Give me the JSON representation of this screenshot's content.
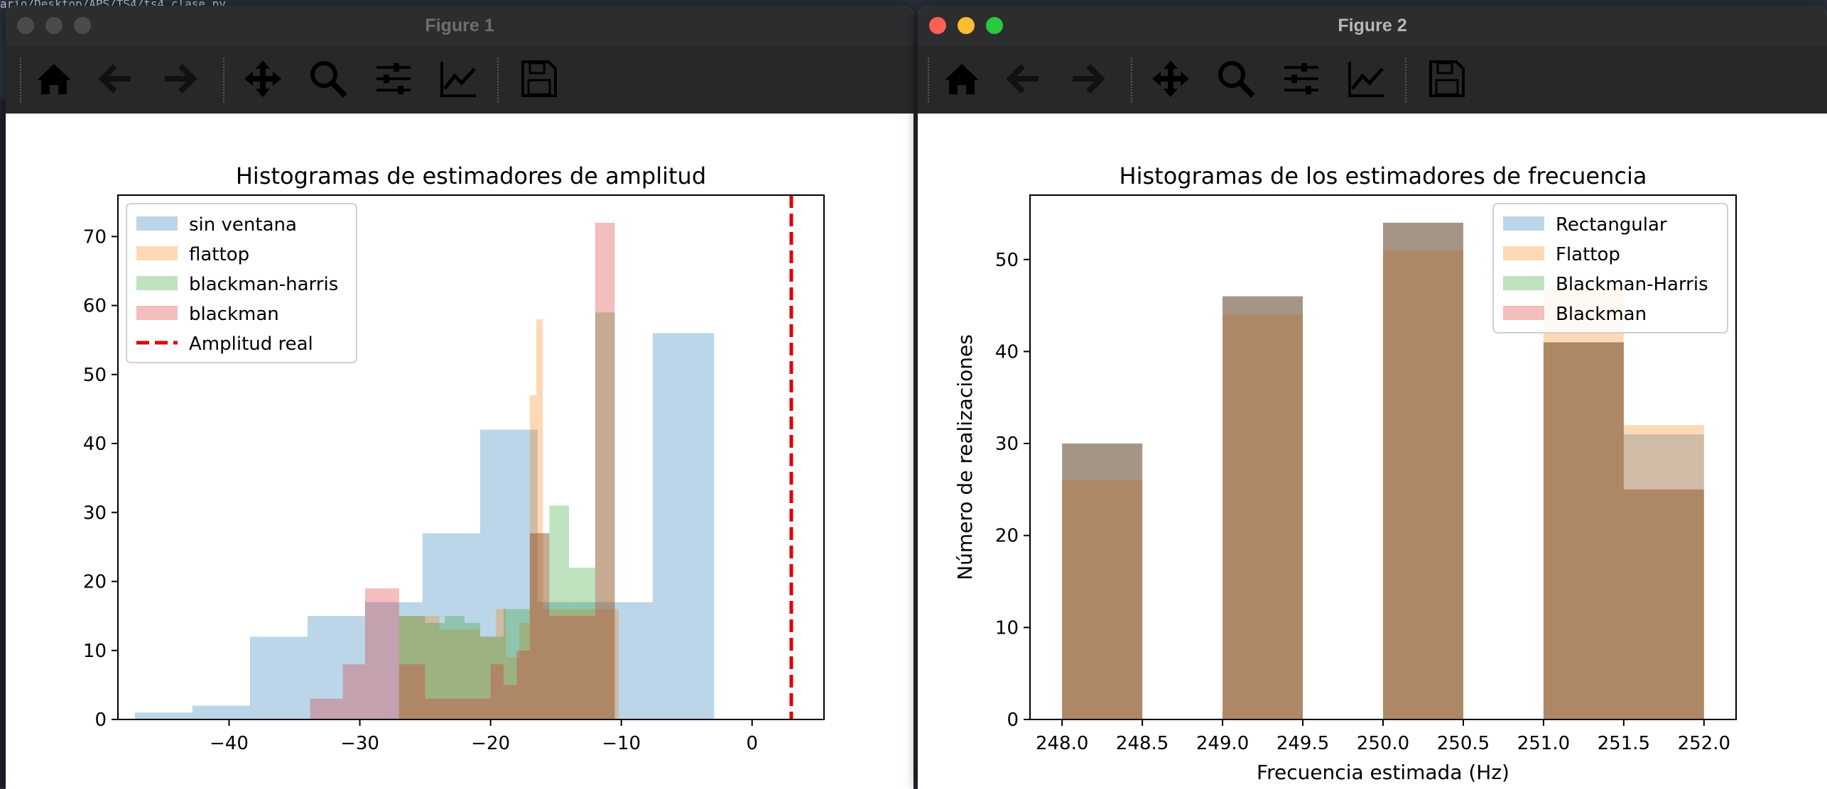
{
  "desktop": {
    "path_text": "ario/Desktop/APS/TS4/ts4_clase.py"
  },
  "windows": [
    {
      "title": "Figure 1",
      "active": false,
      "toolbar": [
        "home-icon",
        "back-arrow-icon",
        "forward-arrow-icon",
        "pan-move-icon",
        "zoom-magnifier-icon",
        "configure-subplots-icon",
        "edit-axes-curves-icon",
        "save-floppy-icon"
      ]
    },
    {
      "title": "Figure 2",
      "active": true,
      "traffic_lights": [
        "#ff5f57",
        "#febc2e",
        "#28c840"
      ],
      "toolbar": [
        "home-icon",
        "back-arrow-icon",
        "forward-arrow-icon",
        "pan-move-icon",
        "zoom-magnifier-icon",
        "configure-subplots-icon",
        "edit-axes-curves-icon",
        "save-floppy-icon"
      ]
    }
  ],
  "colors": {
    "blue": "#1f77b4",
    "orange": "#ff7f0e",
    "green": "#2ca02c",
    "red": "#d62728",
    "real_line": "#e00000",
    "hist_alpha": 0.3
  },
  "chart_data": [
    {
      "type": "bar",
      "subtype": "histogram",
      "title": "Histogramas de estimadores de amplitud",
      "xlabel": "",
      "ylabel": "",
      "xlim": [
        -48.5,
        5.5
      ],
      "ylim": [
        0,
        76
      ],
      "xticks": [
        -40,
        -30,
        -20,
        -10,
        0
      ],
      "yticks": [
        0,
        10,
        20,
        30,
        40,
        50,
        60,
        70
      ],
      "legend_position": "upper-left",
      "series": [
        {
          "name": "sin ventana",
          "color": "#1f77b4",
          "bins": [
            [
              -47.2,
              -42.8,
              1
            ],
            [
              -42.8,
              -38.4,
              2
            ],
            [
              -38.4,
              -34.0,
              12
            ],
            [
              -34.0,
              -29.6,
              15
            ],
            [
              -29.6,
              -25.2,
              17
            ],
            [
              -25.2,
              -20.8,
              27
            ],
            [
              -20.8,
              -16.4,
              42
            ],
            [
              -16.4,
              -12.0,
              17
            ],
            [
              -12.0,
              -7.6,
              17
            ],
            [
              -7.6,
              -2.9,
              56
            ]
          ]
        },
        {
          "name": "flattop",
          "color": "#ff7f0e",
          "bins": [
            [
              -27.0,
              -23.9,
              15
            ],
            [
              -23.9,
              -20.8,
              13
            ],
            [
              -20.8,
              -19.6,
              12
            ],
            [
              -19.6,
              -18.8,
              16
            ],
            [
              -18.8,
              -17.8,
              9
            ],
            [
              -17.8,
              -17.0,
              14
            ],
            [
              -17.0,
              -16.5,
              47
            ],
            [
              -16.5,
              -16.0,
              58
            ],
            [
              -16.0,
              -12.0,
              16
            ],
            [
              -12.0,
              -10.2,
              16
            ]
          ]
        },
        {
          "name": "blackman-harris",
          "color": "#2ca02c",
          "bins": [
            [
              -27.0,
              -25.0,
              15
            ],
            [
              -25.0,
              -23.5,
              14
            ],
            [
              -23.5,
              -22.0,
              15
            ],
            [
              -22.0,
              -20.8,
              14
            ],
            [
              -20.8,
              -19.0,
              12
            ],
            [
              -19.0,
              -17.0,
              16
            ],
            [
              -17.0,
              -15.5,
              27
            ],
            [
              -15.5,
              -14.0,
              31
            ],
            [
              -14.0,
              -12.0,
              22
            ],
            [
              -12.0,
              -10.5,
              59
            ]
          ]
        },
        {
          "name": "blackman",
          "color": "#d62728",
          "bins": [
            [
              -33.8,
              -31.3,
              3
            ],
            [
              -31.3,
              -29.6,
              8
            ],
            [
              -29.6,
              -27.0,
              19
            ],
            [
              -27.0,
              -25.0,
              8
            ],
            [
              -25.0,
              -20.0,
              3
            ],
            [
              -20.0,
              -19.0,
              8
            ],
            [
              -19.0,
              -18.0,
              5
            ],
            [
              -18.0,
              -17.0,
              10
            ],
            [
              -17.0,
              -15.5,
              27
            ],
            [
              -15.5,
              -12.0,
              15
            ],
            [
              -12.0,
              -10.5,
              72
            ]
          ]
        }
      ],
      "reference_lines": [
        {
          "name": "Amplitud real",
          "x": 3,
          "color": "#e00000",
          "style": "dashed"
        }
      ]
    },
    {
      "type": "bar",
      "subtype": "histogram",
      "title": "Histogramas de los estimadores de frecuencia",
      "xlabel": "Frecuencia estimada (Hz)",
      "ylabel": "Número de realizaciones",
      "xlim": [
        247.8,
        252.2
      ],
      "ylim": [
        0,
        57
      ],
      "xticks": [
        248.0,
        248.5,
        249.0,
        249.5,
        250.0,
        250.5,
        251.0,
        251.5,
        252.0
      ],
      "yticks": [
        0,
        10,
        20,
        30,
        40,
        50
      ],
      "legend_position": "upper-right",
      "bin_edges": [
        248.0,
        248.5,
        249.0,
        249.5,
        250.0,
        250.5,
        251.0,
        251.5,
        252.0
      ],
      "series": [
        {
          "name": "Rectangular",
          "color": "#1f77b4",
          "bins": [
            [
              248.0,
              248.5,
              30
            ],
            [
              249.0,
              249.5,
              46
            ],
            [
              250.0,
              250.5,
              54
            ],
            [
              251.0,
              251.5,
              41
            ],
            [
              251.5,
              252.0,
              31
            ]
          ]
        },
        {
          "name": "Flattop",
          "color": "#ff7f0e",
          "bins": [
            [
              248.0,
              248.5,
              26
            ],
            [
              249.0,
              249.5,
              44
            ],
            [
              250.0,
              250.5,
              51
            ],
            [
              251.0,
              251.5,
              47
            ],
            [
              251.5,
              252.0,
              32
            ]
          ]
        },
        {
          "name": "Blackman-Harris",
          "color": "#2ca02c",
          "bins": [
            [
              248.0,
              248.5,
              30
            ],
            [
              249.0,
              249.5,
              46
            ],
            [
              250.0,
              250.5,
              54
            ],
            [
              251.0,
              251.5,
              41
            ],
            [
              251.5,
              252.0,
              25
            ]
          ]
        },
        {
          "name": "Blackman",
          "color": "#d62728",
          "bins": [
            [
              248.0,
              248.5,
              30
            ],
            [
              249.0,
              249.5,
              46
            ],
            [
              250.0,
              250.5,
              54
            ],
            [
              251.0,
              251.5,
              41
            ],
            [
              251.5,
              252.0,
              25
            ]
          ]
        }
      ]
    }
  ]
}
